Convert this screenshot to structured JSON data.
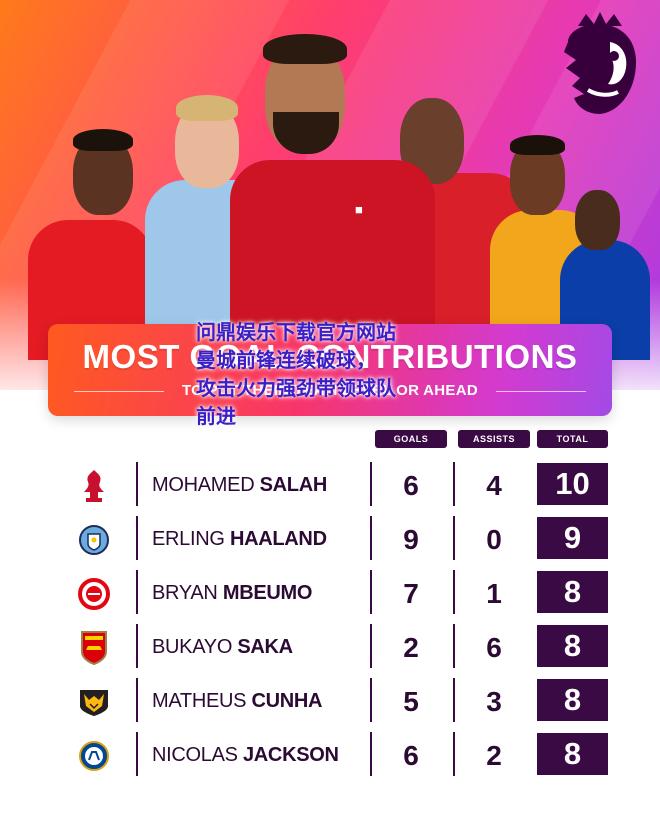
{
  "banner": {
    "title": "MOST GOAL CONTRIBUTIONS",
    "subtitle": "TO PUT THEIR TEAM LEVEL OR AHEAD"
  },
  "overlay_text": {
    "line1": "问鼎娱乐下载官方网站",
    "line2": "曼城前锋连续破球，",
    "line3": "攻击火力强劲带领球队",
    "line4": "前进"
  },
  "columns": {
    "goals": "GOALS",
    "assists": "ASSISTS",
    "total": "TOTAL"
  },
  "rows": [
    {
      "first": "MOHAMED",
      "last": "SALAH",
      "goals": "6",
      "assists": "4",
      "total": "10",
      "crest_icon": "liverpool-crest-icon"
    },
    {
      "first": "ERLING",
      "last": "HAALAND",
      "goals": "9",
      "assists": "0",
      "total": "9",
      "crest_icon": "man-city-crest-icon"
    },
    {
      "first": "BRYAN",
      "last": "MBEUMO",
      "goals": "7",
      "assists": "1",
      "total": "8",
      "crest_icon": "brentford-crest-icon"
    },
    {
      "first": "BUKAYO",
      "last": "SAKA",
      "goals": "2",
      "assists": "6",
      "total": "8",
      "crest_icon": "arsenal-crest-icon"
    },
    {
      "first": "MATHEUS",
      "last": "CUNHA",
      "goals": "5",
      "assists": "3",
      "total": "8",
      "crest_icon": "wolves-crest-icon"
    },
    {
      "first": "NICOLAS",
      "last": "JACKSON",
      "goals": "6",
      "assists": "2",
      "total": "8",
      "crest_icon": "chelsea-crest-icon"
    }
  ],
  "colors": {
    "accent_dark": "#3a0a44",
    "banner_start": "#ff5a1f",
    "banner_end": "#a34ae6"
  }
}
